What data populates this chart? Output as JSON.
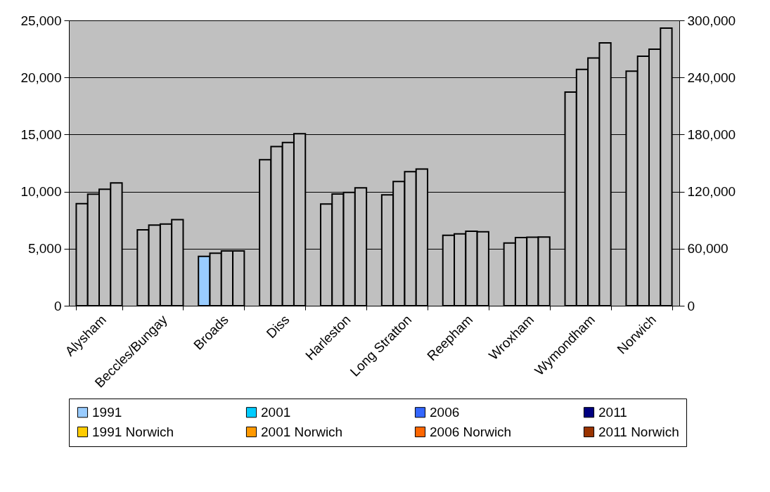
{
  "chart_data": {
    "type": "bar",
    "categories": [
      "Alysham",
      "Beccles/Bungay",
      "Broads",
      "Diss",
      "Harleston",
      "Long Stratton",
      "Reepham",
      "Wroxham",
      "Wymondham",
      "Norwich"
    ],
    "series": [
      {
        "name": "1991",
        "color": "#99ccff",
        "colors": [
          "#c0c0c0",
          "#c0c0c0",
          "#99ccff",
          "#c0c0c0",
          "#c0c0c0",
          "#c0c0c0",
          "#c0c0c0",
          "#c0c0c0",
          "#c0c0c0",
          null
        ],
        "values": [
          8950,
          6650,
          4330,
          12800,
          8910,
          9710,
          6180,
          5500,
          18720,
          null
        ]
      },
      {
        "name": "2001",
        "color": "#00ccff",
        "colors": [
          "#c0c0c0",
          "#c0c0c0",
          "#c0c0c0",
          "#c0c0c0",
          "#c0c0c0",
          "#c0c0c0",
          "#c0c0c0",
          "#c0c0c0",
          "#c0c0c0",
          null
        ],
        "values": [
          9770,
          7060,
          4600,
          13950,
          9790,
          10880,
          6300,
          5970,
          20710,
          null
        ]
      },
      {
        "name": "2006",
        "color": "#3366ff",
        "colors": [
          "#c0c0c0",
          "#c0c0c0",
          "#c0c0c0",
          "#c0c0c0",
          "#c0c0c0",
          "#c0c0c0",
          "#c0c0c0",
          "#c0c0c0",
          "#c0c0c0",
          null
        ],
        "values": [
          10200,
          7160,
          4800,
          14300,
          9930,
          11740,
          6530,
          6000,
          21700,
          null
        ]
      },
      {
        "name": "2011",
        "color": "#000080",
        "colors": [
          "#c0c0c0",
          "#c0c0c0",
          "#c0c0c0",
          "#c0c0c0",
          "#c0c0c0",
          "#c0c0c0",
          "#c0c0c0",
          "#c0c0c0",
          "#c0c0c0",
          null
        ],
        "values": [
          10760,
          7550,
          4800,
          15070,
          10330,
          11970,
          6480,
          6020,
          23030,
          null
        ]
      },
      {
        "name": "1991 Norwich",
        "color": "#ffcc00",
        "axis": "y2",
        "colors": [
          null,
          null,
          null,
          null,
          null,
          null,
          null,
          null,
          null,
          "#c0c0c0"
        ],
        "values": [
          null,
          null,
          null,
          null,
          null,
          null,
          null,
          null,
          null,
          246600
        ]
      },
      {
        "name": "2001 Norwich",
        "color": "#ff9900",
        "axis": "y2",
        "colors": [
          null,
          null,
          null,
          null,
          null,
          null,
          null,
          null,
          null,
          "#c0c0c0"
        ],
        "values": [
          null,
          null,
          null,
          null,
          null,
          null,
          null,
          null,
          null,
          262300
        ]
      },
      {
        "name": "2006 Norwich",
        "color": "#ff6600",
        "axis": "y2",
        "colors": [
          null,
          null,
          null,
          null,
          null,
          null,
          null,
          null,
          null,
          "#c0c0c0"
        ],
        "values": [
          null,
          null,
          null,
          null,
          null,
          null,
          null,
          null,
          null,
          269700
        ]
      },
      {
        "name": "2011 Norwich",
        "color": "#993300",
        "axis": "y2",
        "colors": [
          null,
          null,
          null,
          null,
          null,
          null,
          null,
          null,
          null,
          "#c0c0c0"
        ],
        "values": [
          null,
          null,
          null,
          null,
          null,
          null,
          null,
          null,
          null,
          291900
        ]
      }
    ],
    "ylim": [
      0,
      25000
    ],
    "yticks": [
      0,
      {
        "value": 5000,
        "label": "5,000"
      },
      {
        "value": 10000,
        "label": "10,000"
      },
      {
        "value": 15000,
        "label": "15,000"
      },
      {
        "value": 20000,
        "label": "20,000"
      },
      {
        "value": 25000,
        "label": "25,000"
      }
    ],
    "y2lim": [
      0,
      300000
    ],
    "y2ticks": [
      0,
      {
        "value": 60000,
        "label": "60,000"
      },
      {
        "value": 120000,
        "label": "120,000"
      },
      {
        "value": 180000,
        "label": "180,000"
      },
      {
        "value": 240000,
        "label": "240,000"
      },
      {
        "value": 300000,
        "label": "300,000"
      }
    ],
    "grid": "y",
    "legend": "bottom"
  }
}
